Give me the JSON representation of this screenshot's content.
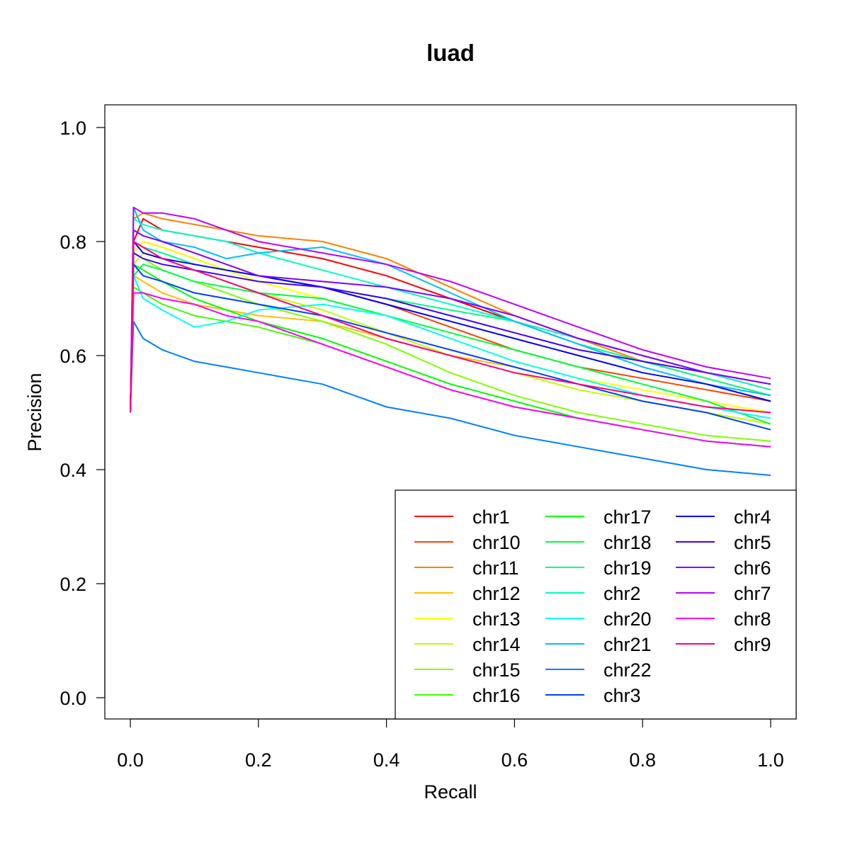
{
  "chart_data": {
    "type": "line",
    "title": "luad",
    "xlabel": "Recall",
    "ylabel": "Precision",
    "xlim": [
      0,
      1
    ],
    "ylim": [
      0,
      1
    ],
    "xticks": [
      "0.0",
      "0.2",
      "0.4",
      "0.6",
      "0.8",
      "1.0"
    ],
    "yticks": [
      "0.0",
      "0.2",
      "0.4",
      "0.6",
      "0.8",
      "1.0"
    ],
    "grid": false,
    "legend_position": "bottom-right",
    "series": [
      {
        "name": "chr1",
        "color": "#FF0000",
        "x": [
          0,
          0.005,
          0.02,
          0.05,
          0.1,
          0.15,
          0.2,
          0.3,
          0.4,
          0.5,
          0.6,
          0.7,
          0.8,
          0.9,
          1.0
        ],
        "y": [
          0.5,
          0.8,
          0.84,
          0.82,
          0.81,
          0.8,
          0.79,
          0.77,
          0.74,
          0.7,
          0.66,
          0.63,
          0.6,
          0.57,
          0.54
        ]
      },
      {
        "name": "chr10",
        "color": "#FF4000",
        "x": [
          0,
          0.005,
          0.02,
          0.05,
          0.1,
          0.15,
          0.2,
          0.3,
          0.4,
          0.5,
          0.6,
          0.7,
          0.8,
          0.9,
          1.0
        ],
        "y": [
          0.5,
          0.78,
          0.8,
          0.79,
          0.77,
          0.75,
          0.74,
          0.72,
          0.69,
          0.65,
          0.61,
          0.58,
          0.56,
          0.54,
          0.52
        ]
      },
      {
        "name": "chr11",
        "color": "#FF8000",
        "x": [
          0,
          0.005,
          0.02,
          0.05,
          0.1,
          0.15,
          0.2,
          0.3,
          0.4,
          0.5,
          0.6,
          0.7,
          0.8,
          0.9,
          1.0
        ],
        "y": [
          0.5,
          0.84,
          0.85,
          0.84,
          0.83,
          0.82,
          0.81,
          0.8,
          0.77,
          0.72,
          0.67,
          0.63,
          0.59,
          0.56,
          0.53
        ]
      },
      {
        "name": "chr12",
        "color": "#FFBF00",
        "x": [
          0,
          0.005,
          0.02,
          0.05,
          0.1,
          0.15,
          0.2,
          0.3,
          0.4,
          0.5,
          0.6,
          0.7,
          0.8,
          0.9,
          1.0
        ],
        "y": [
          0.5,
          0.74,
          0.73,
          0.71,
          0.69,
          0.68,
          0.67,
          0.66,
          0.63,
          0.6,
          0.58,
          0.55,
          0.53,
          0.51,
          0.5
        ]
      },
      {
        "name": "chr13",
        "color": "#FFFF00",
        "x": [
          0,
          0.005,
          0.02,
          0.05,
          0.1,
          0.15,
          0.2,
          0.3,
          0.4,
          0.5,
          0.6,
          0.7,
          0.8,
          0.9,
          1.0
        ],
        "y": [
          0.5,
          0.78,
          0.8,
          0.79,
          0.77,
          0.75,
          0.73,
          0.7,
          0.67,
          0.63,
          0.59,
          0.56,
          0.54,
          0.52,
          0.5
        ]
      },
      {
        "name": "chr14",
        "color": "#BFFF00",
        "x": [
          0,
          0.005,
          0.02,
          0.05,
          0.1,
          0.15,
          0.2,
          0.3,
          0.4,
          0.5,
          0.6,
          0.7,
          0.8,
          0.9,
          1.0
        ],
        "y": [
          0.5,
          0.76,
          0.78,
          0.77,
          0.75,
          0.73,
          0.71,
          0.68,
          0.64,
          0.6,
          0.57,
          0.54,
          0.52,
          0.5,
          0.48
        ]
      },
      {
        "name": "chr15",
        "color": "#80FF00",
        "x": [
          0,
          0.005,
          0.02,
          0.05,
          0.1,
          0.15,
          0.2,
          0.3,
          0.4,
          0.5,
          0.6,
          0.7,
          0.8,
          0.9,
          1.0
        ],
        "y": [
          0.5,
          0.78,
          0.77,
          0.75,
          0.73,
          0.71,
          0.69,
          0.66,
          0.62,
          0.57,
          0.53,
          0.5,
          0.48,
          0.46,
          0.45
        ]
      },
      {
        "name": "chr16",
        "color": "#40FF00",
        "x": [
          0,
          0.005,
          0.02,
          0.05,
          0.1,
          0.15,
          0.2,
          0.3,
          0.4,
          0.5,
          0.6,
          0.7,
          0.8,
          0.9,
          1.0
        ],
        "y": [
          0.5,
          0.72,
          0.71,
          0.69,
          0.67,
          0.66,
          0.65,
          0.62,
          0.58,
          0.54,
          0.51,
          0.49,
          0.47,
          0.45,
          0.44
        ]
      },
      {
        "name": "chr17",
        "color": "#00FF00",
        "x": [
          0,
          0.005,
          0.02,
          0.05,
          0.1,
          0.15,
          0.2,
          0.3,
          0.4,
          0.5,
          0.6,
          0.7,
          0.8,
          0.9,
          1.0
        ],
        "y": [
          0.5,
          0.76,
          0.75,
          0.73,
          0.7,
          0.68,
          0.66,
          0.63,
          0.59,
          0.55,
          0.52,
          0.49,
          0.47,
          0.45,
          0.44
        ]
      },
      {
        "name": "chr18",
        "color": "#00FF40",
        "x": [
          0,
          0.005,
          0.02,
          0.05,
          0.1,
          0.15,
          0.2,
          0.3,
          0.4,
          0.5,
          0.6,
          0.7,
          0.8,
          0.9,
          1.0
        ],
        "y": [
          0.5,
          0.74,
          0.76,
          0.75,
          0.73,
          0.72,
          0.71,
          0.7,
          0.67,
          0.64,
          0.61,
          0.58,
          0.55,
          0.52,
          0.48
        ]
      },
      {
        "name": "chr19",
        "color": "#00FF80",
        "x": [
          0,
          0.005,
          0.02,
          0.05,
          0.1,
          0.15,
          0.2,
          0.3,
          0.4,
          0.5,
          0.6,
          0.7,
          0.8,
          0.9,
          1.0
        ],
        "y": [
          0.5,
          0.8,
          0.79,
          0.78,
          0.76,
          0.75,
          0.74,
          0.72,
          0.7,
          0.68,
          0.66,
          0.62,
          0.59,
          0.56,
          0.53
        ]
      },
      {
        "name": "chr2",
        "color": "#00FFBF",
        "x": [
          0,
          0.005,
          0.02,
          0.05,
          0.1,
          0.15,
          0.2,
          0.3,
          0.4,
          0.5,
          0.6,
          0.7,
          0.8,
          0.9,
          1.0
        ],
        "y": [
          0.5,
          0.84,
          0.83,
          0.82,
          0.81,
          0.8,
          0.78,
          0.75,
          0.72,
          0.69,
          0.66,
          0.63,
          0.6,
          0.57,
          0.54
        ]
      },
      {
        "name": "chr20",
        "color": "#00FFFF",
        "x": [
          0,
          0.005,
          0.02,
          0.05,
          0.1,
          0.15,
          0.2,
          0.3,
          0.4,
          0.5,
          0.6,
          0.7,
          0.8,
          0.9,
          1.0
        ],
        "y": [
          0.5,
          0.74,
          0.7,
          0.68,
          0.65,
          0.66,
          0.68,
          0.69,
          0.67,
          0.63,
          0.59,
          0.56,
          0.53,
          0.51,
          0.49
        ]
      },
      {
        "name": "chr21",
        "color": "#00BFFF",
        "x": [
          0,
          0.005,
          0.02,
          0.05,
          0.1,
          0.15,
          0.2,
          0.3,
          0.4,
          0.5,
          0.6,
          0.7,
          0.8,
          0.9,
          1.0
        ],
        "y": [
          0.5,
          0.86,
          0.82,
          0.8,
          0.79,
          0.77,
          0.78,
          0.79,
          0.76,
          0.71,
          0.66,
          0.62,
          0.58,
          0.55,
          0.53
        ]
      },
      {
        "name": "chr22",
        "color": "#0080FF",
        "x": [
          0,
          0.005,
          0.02,
          0.05,
          0.1,
          0.15,
          0.2,
          0.3,
          0.4,
          0.5,
          0.6,
          0.7,
          0.8,
          0.9,
          1.0
        ],
        "y": [
          0.5,
          0.66,
          0.63,
          0.61,
          0.59,
          0.58,
          0.57,
          0.55,
          0.51,
          0.49,
          0.46,
          0.44,
          0.42,
          0.4,
          0.39
        ]
      },
      {
        "name": "chr3",
        "color": "#0040FF",
        "x": [
          0,
          0.005,
          0.02,
          0.05,
          0.1,
          0.15,
          0.2,
          0.3,
          0.4,
          0.5,
          0.6,
          0.7,
          0.8,
          0.9,
          1.0
        ],
        "y": [
          0.5,
          0.76,
          0.74,
          0.73,
          0.71,
          0.7,
          0.69,
          0.67,
          0.64,
          0.61,
          0.58,
          0.55,
          0.52,
          0.5,
          0.47
        ]
      },
      {
        "name": "chr4",
        "color": "#0000FF",
        "x": [
          0,
          0.005,
          0.02,
          0.05,
          0.1,
          0.15,
          0.2,
          0.3,
          0.4,
          0.5,
          0.6,
          0.7,
          0.8,
          0.9,
          1.0
        ],
        "y": [
          0.5,
          0.8,
          0.78,
          0.77,
          0.76,
          0.75,
          0.74,
          0.72,
          0.69,
          0.66,
          0.63,
          0.6,
          0.57,
          0.55,
          0.52
        ]
      },
      {
        "name": "chr5",
        "color": "#4000FF",
        "x": [
          0,
          0.005,
          0.02,
          0.05,
          0.1,
          0.15,
          0.2,
          0.3,
          0.4,
          0.5,
          0.6,
          0.7,
          0.8,
          0.9,
          1.0
        ],
        "y": [
          0.5,
          0.78,
          0.77,
          0.76,
          0.75,
          0.74,
          0.73,
          0.72,
          0.7,
          0.67,
          0.64,
          0.61,
          0.59,
          0.57,
          0.55
        ]
      },
      {
        "name": "chr6",
        "color": "#8000FF",
        "x": [
          0,
          0.005,
          0.02,
          0.05,
          0.1,
          0.15,
          0.2,
          0.3,
          0.4,
          0.5,
          0.6,
          0.7,
          0.8,
          0.9,
          1.0
        ],
        "y": [
          0.5,
          0.82,
          0.81,
          0.8,
          0.78,
          0.76,
          0.74,
          0.73,
          0.72,
          0.7,
          0.67,
          0.63,
          0.6,
          0.57,
          0.55
        ]
      },
      {
        "name": "chr7",
        "color": "#BF00FF",
        "x": [
          0,
          0.005,
          0.02,
          0.05,
          0.1,
          0.15,
          0.2,
          0.3,
          0.4,
          0.5,
          0.6,
          0.7,
          0.8,
          0.9,
          1.0
        ],
        "y": [
          0.5,
          0.86,
          0.85,
          0.85,
          0.84,
          0.82,
          0.8,
          0.78,
          0.76,
          0.73,
          0.69,
          0.65,
          0.61,
          0.58,
          0.56
        ]
      },
      {
        "name": "chr8",
        "color": "#FF00FF",
        "x": [
          0,
          0.005,
          0.02,
          0.05,
          0.1,
          0.15,
          0.2,
          0.3,
          0.4,
          0.5,
          0.6,
          0.7,
          0.8,
          0.9,
          1.0
        ],
        "y": [
          0.5,
          0.71,
          0.71,
          0.7,
          0.69,
          0.67,
          0.66,
          0.62,
          0.58,
          0.54,
          0.51,
          0.49,
          0.47,
          0.45,
          0.44
        ]
      },
      {
        "name": "chr9",
        "color": "#FF0080",
        "x": [
          0,
          0.005,
          0.02,
          0.05,
          0.1,
          0.15,
          0.2,
          0.3,
          0.4,
          0.5,
          0.6,
          0.7,
          0.8,
          0.9,
          1.0
        ],
        "y": [
          0.5,
          0.8,
          0.79,
          0.77,
          0.75,
          0.73,
          0.71,
          0.67,
          0.63,
          0.6,
          0.57,
          0.55,
          0.53,
          0.51,
          0.5
        ]
      }
    ]
  }
}
